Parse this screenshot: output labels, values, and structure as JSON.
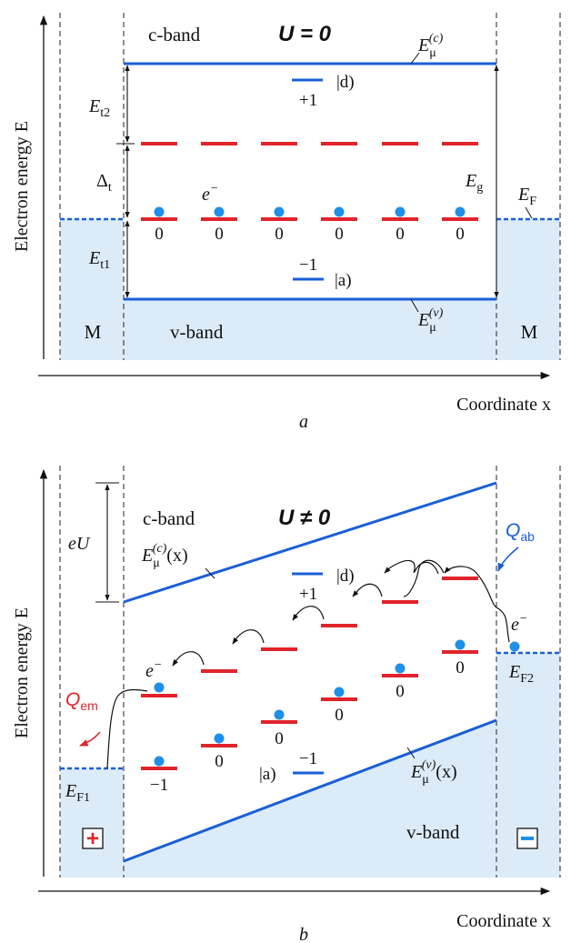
{
  "panel_a": {
    "caption": "a",
    "title": "U = 0",
    "ylabel": "Electron energy E",
    "xlabel": "Coordinate x",
    "c_band": "c-band",
    "v_band": "v-band",
    "metal_left": "M",
    "metal_right": "M",
    "E_c": "E",
    "E_c_sub": "μ",
    "E_c_sup": "(c)",
    "E_v": "E",
    "E_v_sub": "μ",
    "E_v_sup": "(v)",
    "Et2": "E",
    "Et2_sub": "t2",
    "Delta": "Δ",
    "Delta_sub": "t",
    "Et1": "E",
    "Et1_sub": "t1",
    "Eg": "E",
    "Eg_sub": "g",
    "EF": "E",
    "EF_sub": "F",
    "electron": "e",
    "electron_sup": "−",
    "state_d": "|d)",
    "state_d_charge": "+1",
    "state_a": "|a)",
    "state_a_charge": "−1",
    "occupancy": [
      "0",
      "0",
      "0",
      "0",
      "0",
      "0"
    ]
  },
  "panel_b": {
    "caption": "b",
    "title": "U ≠ 0",
    "ylabel": "Electron energy E",
    "xlabel": "Coordinate x",
    "c_band": "c-band",
    "v_band": "v-band",
    "eU": "eU",
    "E_c": "E",
    "E_c_sub": "μ",
    "E_c_sup": "(c)",
    "E_c_arg": "(x)",
    "E_v": "E",
    "E_v_sub": "μ",
    "E_v_sup": "(v)",
    "E_v_arg": "(x)",
    "EF1": "E",
    "EF1_sub": "F1",
    "EF2": "E",
    "EF2_sub": "F2",
    "Q_ab": "Q",
    "Q_ab_sub": "ab",
    "Q_em": "Q",
    "Q_em_sub": "em",
    "electron": "e",
    "electron_sup": "−",
    "state_d": "|d)",
    "state_d_charge": "+1",
    "state_a": "|a)",
    "state_a_charge": "−1",
    "occupancy": [
      "−1",
      "0",
      "0",
      "0",
      "0",
      "0"
    ],
    "plus_sign": "+",
    "minus_sign": "−"
  },
  "colors": {
    "band_edge": "#1a5fd6",
    "level": "#e0242a",
    "electron": "#1e90e8",
    "fill": "#dcebf8",
    "heat_ab": "#1a5fd6",
    "heat_em": "#e0242a"
  }
}
